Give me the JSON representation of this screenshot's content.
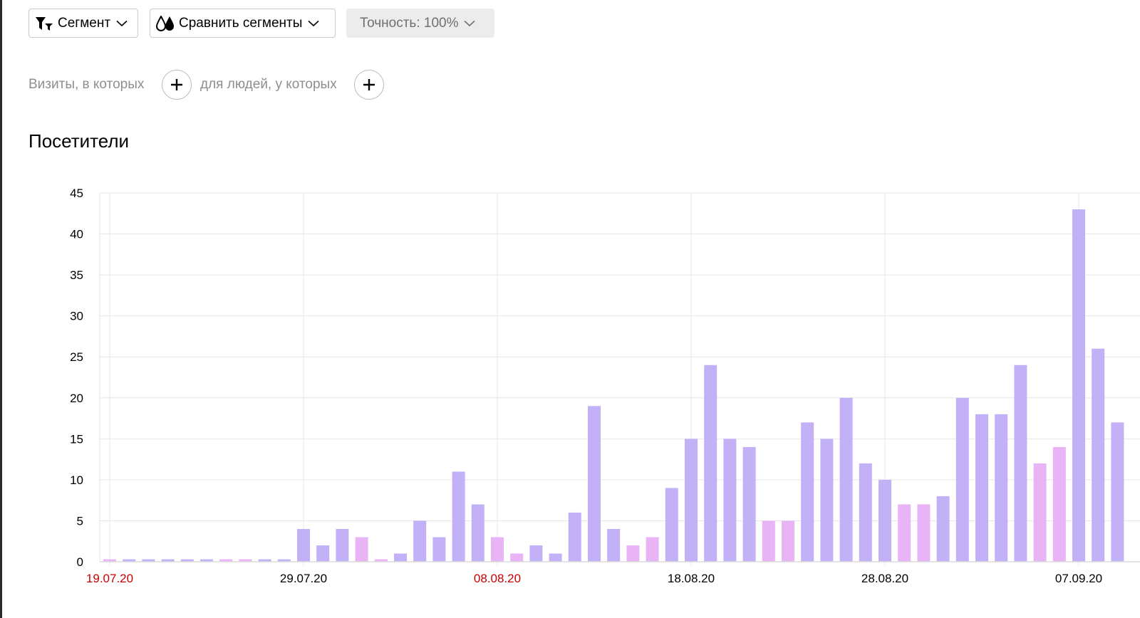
{
  "toolbar": {
    "segment_label": "Сегмент",
    "compare_label": "Сравнить сегменты",
    "accuracy_label": "Точность: 100%"
  },
  "filters": {
    "visits_label": "Визиты, в которых",
    "people_label": "для людей, у которых"
  },
  "chart_title": "Посетители",
  "colors": {
    "weekday_bar": "#c3b1f7",
    "weekend_bar": "#e9b4f6",
    "weekend_tick": "#cc0000",
    "grid": "#e6e6e6"
  },
  "icons": {
    "segment": "funnel-icon",
    "compare": "drops-icon",
    "chevron": "chevron-down-icon",
    "plus": "plus-icon"
  },
  "chart_data": {
    "type": "bar",
    "title": "Посетители",
    "xlabel": "",
    "ylabel": "",
    "ylim": [
      0,
      45
    ],
    "yticks": [
      0,
      5,
      10,
      15,
      20,
      25,
      30,
      35,
      40,
      45
    ],
    "grid": true,
    "x_start": "19.07.20",
    "xticks": [
      {
        "label": "19.07.20",
        "weekend": true
      },
      {
        "label": "29.07.20",
        "weekend": false
      },
      {
        "label": "08.08.20",
        "weekend": true
      },
      {
        "label": "18.08.20",
        "weekend": false
      },
      {
        "label": "28.08.20",
        "weekend": false
      },
      {
        "label": "07.09.20",
        "weekend": false
      }
    ],
    "categories": [
      "19.07.20",
      "20.07.20",
      "21.07.20",
      "22.07.20",
      "23.07.20",
      "24.07.20",
      "25.07.20",
      "26.07.20",
      "27.07.20",
      "28.07.20",
      "29.07.20",
      "30.07.20",
      "31.07.20",
      "01.08.20",
      "02.08.20",
      "03.08.20",
      "04.08.20",
      "05.08.20",
      "06.08.20",
      "07.08.20",
      "08.08.20",
      "09.08.20",
      "10.08.20",
      "11.08.20",
      "12.08.20",
      "13.08.20",
      "14.08.20",
      "15.08.20",
      "16.08.20",
      "17.08.20",
      "18.08.20",
      "19.08.20",
      "20.08.20",
      "21.08.20",
      "22.08.20",
      "23.08.20",
      "24.08.20",
      "25.08.20",
      "26.08.20",
      "27.08.20",
      "28.08.20",
      "29.08.20",
      "30.08.20",
      "31.08.20",
      "01.09.20",
      "02.09.20",
      "03.09.20",
      "04.09.20",
      "05.09.20",
      "06.09.20",
      "07.09.20",
      "08.09.20",
      "09.09.20"
    ],
    "values": [
      0.3,
      0.3,
      0.3,
      0.3,
      0.3,
      0.3,
      0.3,
      0.3,
      0.3,
      0.3,
      4,
      2,
      4,
      3,
      0.3,
      1,
      5,
      3,
      11,
      7,
      3,
      1,
      2,
      1,
      6,
      19,
      4,
      2,
      3,
      9,
      15,
      24,
      15,
      14,
      5,
      5,
      17,
      15,
      20,
      12,
      10,
      7,
      7,
      8,
      20,
      18,
      18,
      24,
      12,
      14,
      43,
      26,
      17
    ],
    "weekend": [
      true,
      false,
      false,
      false,
      false,
      false,
      true,
      true,
      false,
      false,
      false,
      false,
      false,
      true,
      true,
      false,
      false,
      false,
      false,
      false,
      true,
      true,
      false,
      false,
      false,
      false,
      false,
      true,
      true,
      false,
      false,
      false,
      false,
      false,
      true,
      true,
      false,
      false,
      false,
      false,
      false,
      true,
      true,
      false,
      false,
      false,
      false,
      false,
      true,
      true,
      false,
      false,
      false
    ]
  }
}
